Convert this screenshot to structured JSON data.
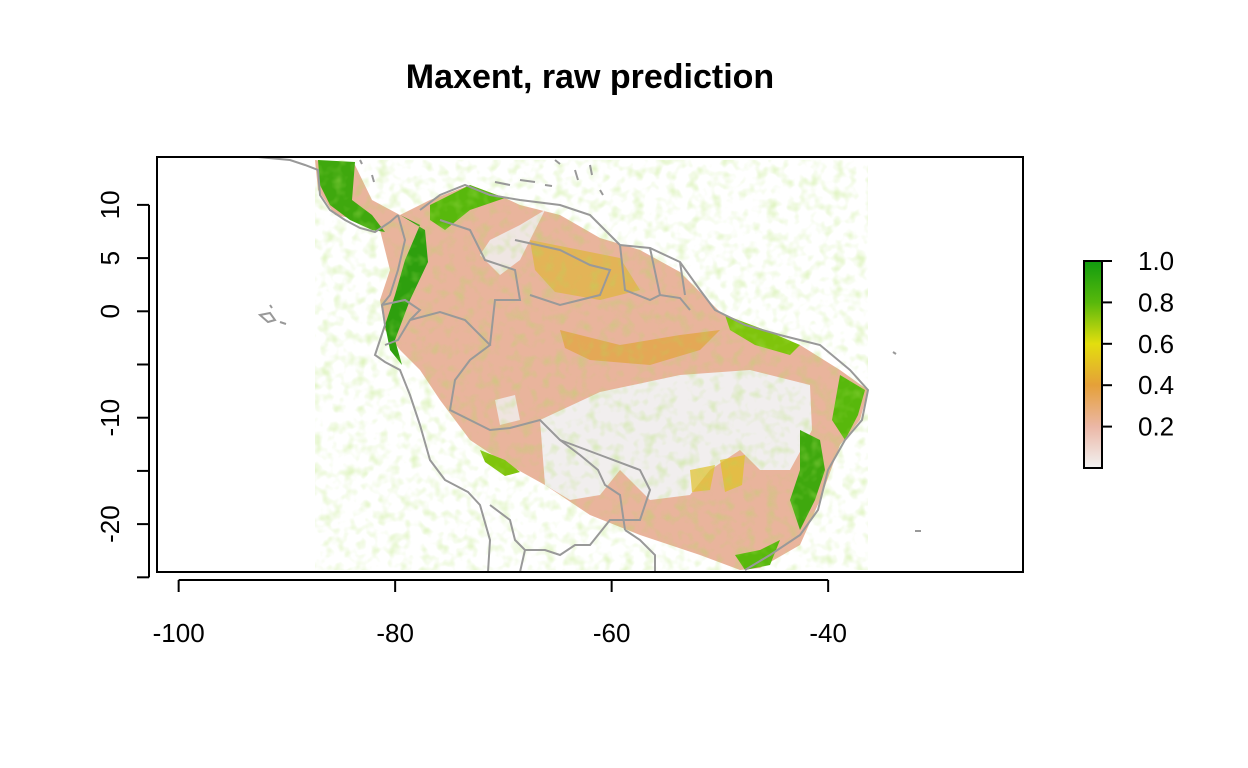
{
  "title": "Maxent, raw prediction",
  "map": {
    "xlim": [
      -102,
      -22
    ],
    "ylim": [
      -24.5,
      14.5
    ],
    "x_ticks": [
      -100,
      -80,
      -60,
      -40
    ],
    "x_tick_labels": [
      "-100",
      "-80",
      "-60",
      "-40"
    ],
    "y_ticks": [
      -25,
      -20,
      -15,
      -10,
      -5,
      0,
      5,
      10
    ],
    "y_tick_labels": [
      "",
      "-20",
      "",
      "-10",
      "",
      "0",
      "5",
      "10"
    ],
    "border_color": "#999999"
  },
  "legend": {
    "range": [
      0,
      1
    ],
    "ticks": [
      1.0,
      0.8,
      0.6,
      0.4,
      0.2
    ],
    "tick_labels": [
      "1.0",
      "0.8",
      "0.6",
      "0.4",
      "0.2"
    ],
    "colors": [
      {
        "at": 0.0,
        "color": "#f2f2f2"
      },
      {
        "at": 0.2,
        "color": "#ebb7a6"
      },
      {
        "at": 0.4,
        "color": "#e5a039"
      },
      {
        "at": 0.6,
        "color": "#e3de0e"
      },
      {
        "at": 0.8,
        "color": "#58b80c"
      },
      {
        "at": 1.0,
        "color": "#119c0f"
      }
    ]
  }
}
